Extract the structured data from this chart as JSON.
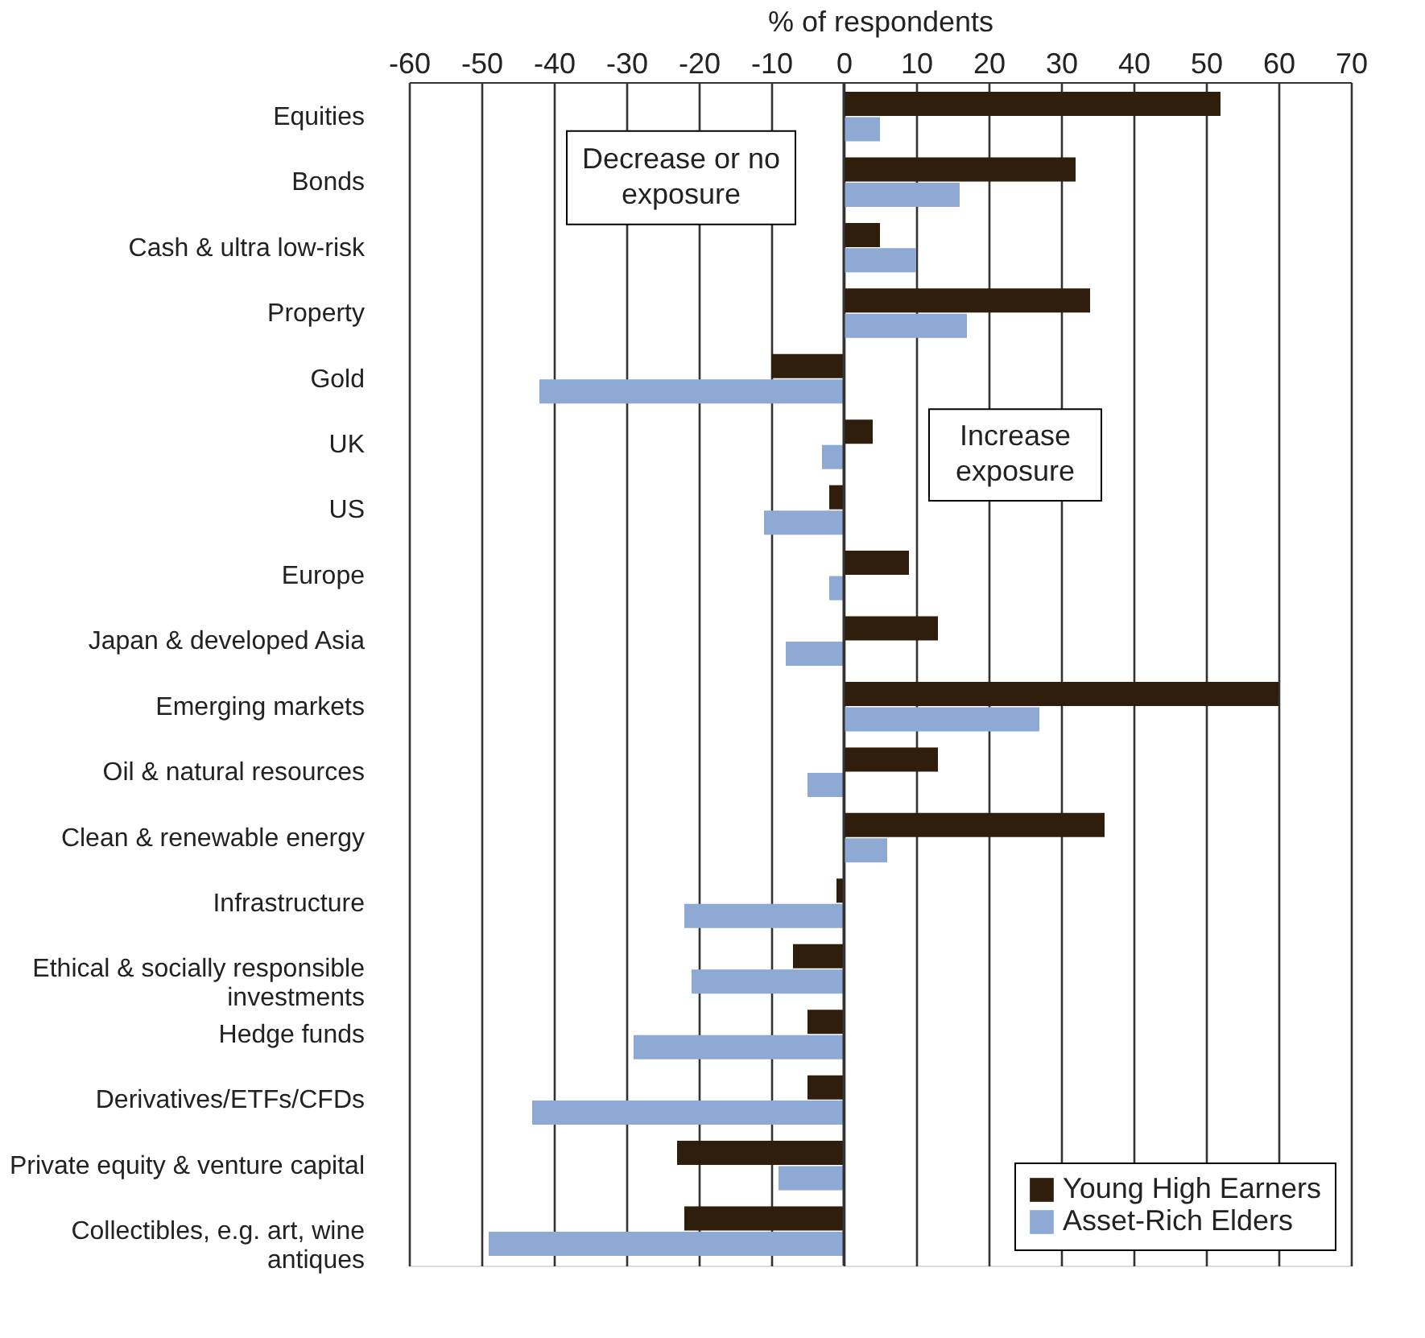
{
  "chart_data": {
    "type": "bar",
    "orientation": "horizontal",
    "xlabel": "% of respondents",
    "categories": [
      "Equities",
      "Bonds",
      "Cash & ultra low-risk",
      "Property",
      "Gold",
      "UK",
      "US",
      "Europe",
      "Japan & developed Asia",
      "Emerging markets",
      "Oil & natural resources",
      "Clean & renewable energy",
      "Infrastructure",
      "Ethical & socially responsible investments",
      "Hedge funds",
      "Derivatives/ETFs/CFDs",
      "Private equity & venture capital",
      "Collectibles, e.g. art, wine antiques"
    ],
    "series": [
      {
        "name": "Young High Earners",
        "color": "#2f1e0b",
        "values": [
          52,
          32,
          5,
          34,
          -10,
          4,
          -2,
          9,
          13,
          60,
          13,
          36,
          -1,
          -7,
          -5,
          -5,
          -23,
          -22
        ]
      },
      {
        "name": "Asset-Rich Elders",
        "color": "#8ea9d3",
        "values": [
          5,
          16,
          10,
          17,
          -42,
          -3,
          -11,
          -2,
          -8,
          27,
          -5,
          6,
          -22,
          -21,
          -29,
          -43,
          -9,
          -49
        ]
      }
    ],
    "xlim": [
      -60,
      70
    ],
    "xticks": [
      -60,
      -50,
      -40,
      -30,
      -20,
      -10,
      0,
      10,
      20,
      30,
      40,
      50,
      60,
      70
    ],
    "grid": "x",
    "legend": "bottom right",
    "ref_lines": [
      {
        "axis": "x",
        "value": 0
      }
    ],
    "annotations": [
      "Decrease or no exposure",
      "Increase exposure"
    ]
  }
}
